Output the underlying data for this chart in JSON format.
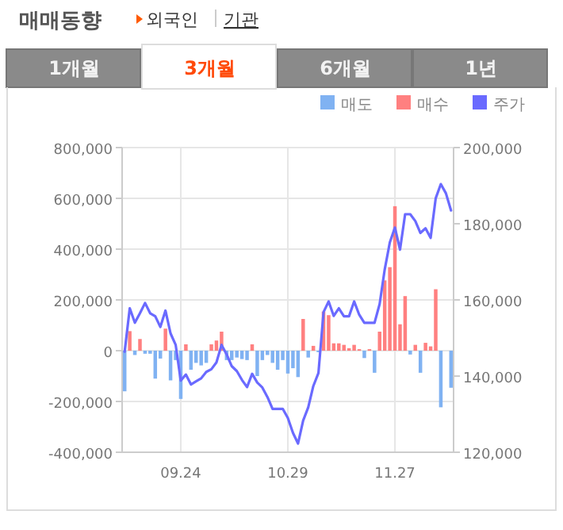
{
  "chart_data": {
    "type": "bar",
    "title": "매매동향",
    "annotations": [
      "외국인",
      "기관",
      "1개월",
      "3개월",
      "6개월",
      "1년"
    ],
    "categories": [
      null,
      null,
      null,
      null,
      null,
      null,
      null,
      null,
      null,
      null,
      null,
      "09.24",
      null,
      null,
      null,
      null,
      null,
      null,
      null,
      null,
      null,
      null,
      null,
      null,
      null,
      null,
      null,
      null,
      null,
      null,
      null,
      null,
      "10.29",
      null,
      null,
      null,
      null,
      null,
      null,
      null,
      null,
      null,
      null,
      null,
      null,
      null,
      null,
      null,
      null,
      null,
      null,
      null,
      null,
      "11.27",
      null,
      null,
      null,
      null,
      null,
      null,
      null,
      null,
      null,
      null,
      null
    ],
    "series": [
      {
        "name": "매도",
        "color": "#80b2f2",
        "values": [
          -160000,
          null,
          -17000,
          null,
          -12000,
          -12000,
          -110000,
          -31000,
          null,
          -117000,
          -37000,
          -190000,
          null,
          -75000,
          -48000,
          -58000,
          -48000,
          null,
          null,
          null,
          -37000,
          -37000,
          -27000,
          -33000,
          -37000,
          null,
          -100000,
          -37000,
          -17000,
          -48000,
          -75000,
          -37000,
          -90000,
          -69000,
          -104000,
          null,
          -27000,
          null,
          -6000,
          null,
          null,
          null,
          null,
          null,
          null,
          null,
          null,
          -29000,
          null,
          -87000,
          null,
          null,
          null,
          null,
          null,
          null,
          -15000,
          null,
          -87000,
          null,
          null,
          null,
          -223000,
          null,
          -146000
        ]
      },
      {
        "name": "매수",
        "color": "#ff8080",
        "values": [
          null,
          77000,
          null,
          46000,
          null,
          null,
          null,
          null,
          87000,
          null,
          null,
          null,
          25000,
          null,
          null,
          null,
          null,
          25000,
          40000,
          75000,
          null,
          null,
          null,
          null,
          null,
          25000,
          null,
          null,
          null,
          null,
          null,
          null,
          null,
          null,
          null,
          125000,
          null,
          19000,
          null,
          154000,
          140000,
          29000,
          29000,
          23000,
          10000,
          23000,
          6000,
          null,
          6000,
          null,
          75000,
          277000,
          329000,
          569000,
          104000,
          215000,
          null,
          23000,
          null,
          31000,
          17000,
          242000,
          null,
          null,
          null
        ]
      },
      {
        "name": "주가",
        "type": "line",
        "axis": "y2",
        "color": "#6a6aff",
        "values": [
          146400,
          157800,
          154000,
          156500,
          159200,
          156500,
          155700,
          152900,
          157200,
          151200,
          148200,
          138800,
          140400,
          137800,
          138600,
          139400,
          141100,
          141800,
          143600,
          148200,
          145700,
          142600,
          141300,
          139000,
          137100,
          140600,
          138300,
          137000,
          134500,
          131400,
          131400,
          131400,
          129000,
          125100,
          122300,
          128300,
          131800,
          137400,
          140800,
          156800,
          159600,
          155800,
          157800,
          155700,
          155700,
          159600,
          156100,
          154000,
          154000,
          154000,
          158900,
          168000,
          175100,
          179000,
          173200,
          182500,
          182500,
          180700,
          177600,
          178800,
          176300,
          186700,
          190400,
          188000,
          183500
        ]
      }
    ],
    "ylim": [
      -400000,
      800000
    ],
    "yticks": [
      {
        "value": -400000,
        "label": "-400,000"
      },
      {
        "value": -200000,
        "label": "-200,000"
      },
      0,
      {
        "value": 200000,
        "label": "200,000"
      },
      {
        "value": 400000,
        "label": "400,000"
      },
      {
        "value": 600000,
        "label": "600,000"
      },
      {
        "value": 800000,
        "label": "800,000"
      }
    ],
    "y2lim": [
      120000,
      200000
    ],
    "y2ticks": [
      {
        "value": 120000,
        "label": "120,000"
      },
      {
        "value": 140000,
        "label": "140,000"
      },
      {
        "value": 160000,
        "label": "160,000"
      },
      {
        "value": 180000,
        "label": "180,000"
      },
      {
        "value": 200000,
        "label": "200,000"
      }
    ],
    "grid": true,
    "legend": "top right"
  }
}
